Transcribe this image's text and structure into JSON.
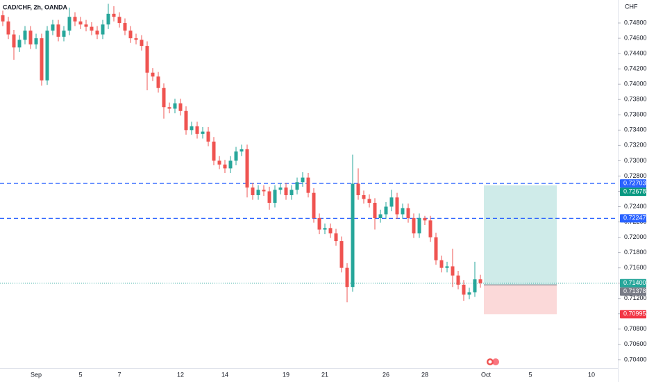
{
  "chart_data": {
    "type": "candlestick",
    "title": "CAD/CHF, 2h, OANDA",
    "y_axis_label": "CHF",
    "up_color": "#26a69a",
    "down_color": "#ef5350",
    "categories": [
      null,
      null,
      null,
      null,
      null,
      null,
      "Sep",
      null,
      null,
      null,
      null,
      null,
      null,
      null,
      "5",
      null,
      null,
      null,
      null,
      null,
      null,
      "7",
      null,
      null,
      null,
      null,
      null,
      null,
      null,
      null,
      null,
      null,
      "12",
      null,
      null,
      null,
      null,
      null,
      null,
      null,
      "14",
      null,
      null,
      null,
      null,
      null,
      null,
      null,
      null,
      null,
      null,
      "19",
      null,
      null,
      null,
      null,
      null,
      null,
      "21",
      null,
      null,
      null,
      null,
      null,
      null,
      null,
      null,
      null,
      null,
      "26",
      null,
      null,
      null,
      null,
      null,
      null,
      "28",
      null,
      null,
      null,
      null,
      null,
      null,
      null,
      null,
      null,
      null,
      "Oct",
      null,
      null,
      null,
      null,
      null,
      null,
      null,
      "5",
      null,
      null,
      null,
      null,
      null,
      null,
      null,
      null,
      null,
      null,
      "10",
      null,
      null,
      null,
      null
    ],
    "open": [
      0.749,
      0.7482,
      0.7465,
      0.7448,
      0.7458,
      0.747,
      0.7452,
      0.746,
      0.7405,
      0.747,
      0.7478,
      0.7462,
      0.747,
      0.7488,
      0.7482,
      0.7478,
      0.7475,
      0.747,
      0.7465,
      0.7478,
      0.7492,
      0.7488,
      0.748,
      0.747,
      0.746,
      0.7458,
      0.745,
      0.7415,
      0.741,
      0.7395,
      0.737,
      0.7368,
      0.7375,
      0.7365,
      0.734,
      0.7345,
      0.7335,
      0.7338,
      0.7325,
      0.73,
      0.7295,
      0.729,
      0.73,
      0.7312,
      0.7315,
      0.7265,
      0.7255,
      0.7262,
      0.726,
      0.7245,
      0.7262,
      0.7265,
      0.7255,
      0.7262,
      0.7272,
      0.7278,
      0.7258,
      0.7225,
      0.721,
      0.7212,
      0.7205,
      0.7195,
      0.716,
      0.7135,
      0.727,
      0.7255,
      0.725,
      0.7245,
      0.7225,
      0.723,
      0.724,
      0.7252,
      0.723,
      0.7238,
      0.7225,
      0.7205,
      0.7225,
      0.7222,
      0.72,
      0.717,
      0.716,
      0.7162,
      0.715,
      0.7138,
      0.7125,
      0.7128,
      0.7145,
      null,
      null,
      null,
      null,
      null,
      null,
      null,
      null,
      null,
      null,
      null,
      null,
      null,
      null,
      null,
      null,
      null,
      null,
      null,
      null,
      null,
      null,
      null,
      null
    ],
    "high": [
      0.7496,
      0.7488,
      0.7471,
      0.7464,
      0.7476,
      0.7476,
      0.7466,
      0.7466,
      0.7476,
      0.7484,
      0.7484,
      0.7476,
      0.75,
      0.7494,
      0.7488,
      0.7484,
      0.7481,
      0.7476,
      0.7484,
      0.7505,
      0.7502,
      0.7494,
      0.7486,
      0.7476,
      0.7466,
      0.7464,
      0.7456,
      0.7421,
      0.7416,
      0.7401,
      0.7376,
      0.7381,
      0.7381,
      0.7371,
      0.7351,
      0.7351,
      0.7344,
      0.7344,
      0.7331,
      0.7306,
      0.7301,
      0.7306,
      0.7318,
      0.7321,
      0.7321,
      0.7271,
      0.7268,
      0.7268,
      0.7266,
      0.7268,
      0.7271,
      0.7271,
      0.7268,
      0.7278,
      0.7285,
      0.7284,
      0.7264,
      0.7231,
      0.7218,
      0.7218,
      0.7211,
      0.7201,
      0.7166,
      0.7308,
      0.729,
      0.7261,
      0.7256,
      0.7251,
      0.7236,
      0.7246,
      0.7262,
      0.7258,
      0.7244,
      0.7244,
      0.7231,
      0.7231,
      0.7228,
      0.7228,
      0.7206,
      0.7176,
      0.7168,
      0.7185,
      0.7156,
      0.7144,
      0.7134,
      0.7168,
      0.7151,
      null,
      null,
      null,
      null,
      null,
      null,
      null,
      null,
      null,
      null,
      null,
      null,
      null,
      null,
      null,
      null,
      null,
      null,
      null,
      null,
      null,
      null,
      null,
      null
    ],
    "low": [
      0.7476,
      0.7459,
      0.7432,
      0.7442,
      0.7452,
      0.7446,
      0.7446,
      0.7398,
      0.7399,
      0.7464,
      0.7456,
      0.7456,
      0.7464,
      0.7476,
      0.7472,
      0.7469,
      0.7464,
      0.7459,
      0.7459,
      0.7472,
      0.7482,
      0.7474,
      0.7464,
      0.7454,
      0.7452,
      0.7444,
      0.7392,
      0.7404,
      0.7389,
      0.7355,
      0.7362,
      0.7362,
      0.7359,
      0.7334,
      0.7334,
      0.7329,
      0.7329,
      0.7319,
      0.7294,
      0.7289,
      0.7284,
      0.7284,
      0.7294,
      0.7306,
      0.7252,
      0.7249,
      0.7249,
      0.7254,
      0.7236,
      0.7239,
      0.7256,
      0.7249,
      0.7249,
      0.7256,
      0.7266,
      0.7252,
      0.7219,
      0.7204,
      0.7204,
      0.7199,
      0.7189,
      0.7154,
      0.7115,
      0.7129,
      0.7249,
      0.7244,
      0.7239,
      0.721,
      0.7219,
      0.7224,
      0.7234,
      0.7224,
      0.7224,
      0.7219,
      0.7199,
      0.7199,
      0.7216,
      0.7194,
      0.7164,
      0.7154,
      0.7154,
      0.7135,
      0.7132,
      0.7117,
      0.7119,
      0.7122,
      0.7134,
      null,
      null,
      null,
      null,
      null,
      null,
      null,
      null,
      null,
      null,
      null,
      null,
      null,
      null,
      null,
      null,
      null,
      null,
      null,
      null,
      null,
      null,
      null,
      null
    ],
    "close": [
      0.7482,
      0.7465,
      0.7448,
      0.7458,
      0.747,
      0.7452,
      0.746,
      0.7405,
      0.747,
      0.7478,
      0.7462,
      0.747,
      0.7488,
      0.7482,
      0.7478,
      0.7475,
      0.747,
      0.7465,
      0.7478,
      0.7492,
      0.7488,
      0.748,
      0.747,
      0.746,
      0.7458,
      0.745,
      0.7415,
      0.741,
      0.7395,
      0.737,
      0.7368,
      0.7375,
      0.7365,
      0.734,
      0.7345,
      0.7335,
      0.7338,
      0.7325,
      0.73,
      0.7295,
      0.729,
      0.73,
      0.7312,
      0.7315,
      0.7265,
      0.7255,
      0.7262,
      0.726,
      0.7245,
      0.7262,
      0.7265,
      0.7255,
      0.7262,
      0.7272,
      0.7278,
      0.7258,
      0.7225,
      0.721,
      0.7212,
      0.7205,
      0.7195,
      0.716,
      0.7135,
      0.727,
      0.7255,
      0.725,
      0.7245,
      0.7225,
      0.723,
      0.724,
      0.7252,
      0.723,
      0.7238,
      0.7225,
      0.7205,
      0.7225,
      0.7222,
      0.72,
      0.717,
      0.716,
      0.7162,
      0.715,
      0.7138,
      0.7125,
      0.7128,
      0.7145,
      0.714,
      null,
      null,
      null,
      null,
      null,
      null,
      null,
      null,
      null,
      null,
      null,
      null,
      null,
      null,
      null,
      null,
      null,
      null,
      null,
      null,
      null,
      null,
      null,
      null
    ],
    "ylim": [
      0.7029,
      0.751
    ],
    "yticks": [
      {
        "value": 0.748,
        "label": "0.74800"
      },
      {
        "value": 0.746,
        "label": "0.74600"
      },
      {
        "value": 0.744,
        "label": "0.74400"
      },
      {
        "value": 0.742,
        "label": "0.74200"
      },
      {
        "value": 0.74,
        "label": "0.74000"
      },
      {
        "value": 0.738,
        "label": "0.73800"
      },
      {
        "value": 0.736,
        "label": "0.73600"
      },
      {
        "value": 0.734,
        "label": "0.73400"
      },
      {
        "value": 0.732,
        "label": "0.73200"
      },
      {
        "value": 0.73,
        "label": "0.73000"
      },
      {
        "value": 0.728,
        "label": "0.72800"
      },
      {
        "value": 0.726,
        "label": "0.72600"
      },
      {
        "value": 0.724,
        "label": "0.72400"
      },
      {
        "value": 0.722,
        "label": "0.72200"
      },
      {
        "value": 0.72,
        "label": "0.72000"
      },
      {
        "value": 0.718,
        "label": "0.71800"
      },
      {
        "value": 0.716,
        "label": "0.71600"
      },
      {
        "value": 0.714,
        "label": "0.71400"
      },
      {
        "value": 0.712,
        "label": "0.71200"
      },
      {
        "value": 0.71,
        "label": "0.71000"
      },
      {
        "value": 0.708,
        "label": "0.70800"
      },
      {
        "value": 0.706,
        "label": "0.70600"
      },
      {
        "value": 0.704,
        "label": "0.70400"
      }
    ],
    "price_lines": [
      {
        "value": 0.72703,
        "label": "0.72703",
        "color": "#2962ff",
        "style": "dashed"
      },
      {
        "value": 0.72247,
        "label": "0.72247",
        "color": "#2962ff",
        "style": "dashed"
      },
      {
        "value": 0.714,
        "label": "0.71400",
        "color": "#26a69a",
        "style": "dotted"
      }
    ],
    "position": {
      "target": 0.72678,
      "target_label": "0.72678",
      "entry": 0.71378,
      "entry_label": "0.71378",
      "stop": 0.70995,
      "stop_label": "0.70995",
      "profit_color": "#26a69a",
      "loss_color": "#ef5350",
      "entry_color": "#787b86"
    }
  }
}
